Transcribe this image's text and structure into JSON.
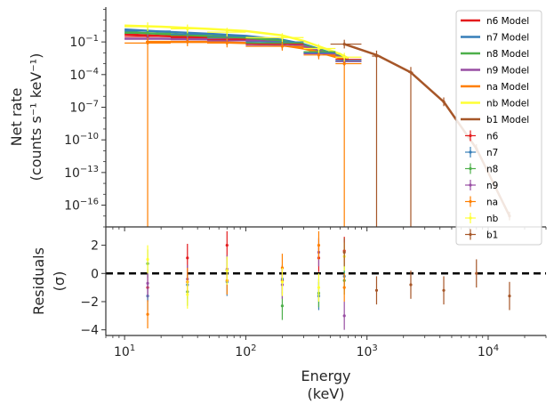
{
  "chart_data": {
    "type": "line",
    "x_scale": "log",
    "xlim": [
      7,
      30000
    ],
    "xlabel": "Energy",
    "xlabel_unit": "(keV)",
    "x_ticks": [
      {
        "value": 10,
        "base": "10",
        "exp": "1"
      },
      {
        "value": 100,
        "base": "10",
        "exp": "2"
      },
      {
        "value": 1000,
        "base": "10",
        "exp": "3"
      },
      {
        "value": 10000,
        "base": "10",
        "exp": "4"
      }
    ],
    "top_panel": {
      "y_scale": "log",
      "ylim_log10": [
        -18,
        2.2
      ],
      "ylabel": "Net rate",
      "ylabel_unit": "(counts s⁻¹ keV⁻¹)",
      "y_ticks": [
        {
          "log10": -1,
          "base": "10",
          "exp": "−1"
        },
        {
          "log10": -4,
          "base": "10",
          "exp": "−4"
        },
        {
          "log10": -7,
          "base": "10",
          "exp": "−7"
        },
        {
          "log10": -10,
          "base": "10",
          "exp": "−10"
        },
        {
          "log10": -13,
          "base": "10",
          "exp": "−13"
        },
        {
          "log10": -16,
          "base": "10",
          "exp": "−16"
        }
      ]
    },
    "bottom_panel": {
      "ylim": [
        -4.4,
        3.3
      ],
      "ylabel": "Residuals",
      "ylabel_unit": "(σ)",
      "y_ticks": [
        2,
        0,
        -2,
        -4
      ],
      "zero_line": true
    },
    "legend": {
      "placement": "top-right",
      "entries": [
        "n6 Model",
        "n7 Model",
        "n8 Model",
        "n9 Model",
        "na Model",
        "nb Model",
        "b1 Model",
        "n6",
        "n7",
        "n8",
        "n9",
        "na",
        "nb",
        "b1"
      ]
    },
    "series": [
      {
        "name": "n6",
        "color": "#e41a1c",
        "model_x": [
          10,
          20,
          50,
          100,
          200,
          300,
          400,
          600,
          700
        ],
        "model_log10": [
          -0.3,
          -0.45,
          -0.6,
          -0.75,
          -1.0,
          -1.35,
          -1.75,
          -2.35,
          -2.6
        ],
        "data": [
          {
            "x": 15.5,
            "log10": -0.5,
            "xerr": [
              10,
              24
            ],
            "res": -1.0
          },
          {
            "x": 33,
            "log10": -0.6,
            "xerr": [
              24,
              48
            ],
            "res": 1.1
          },
          {
            "x": 70,
            "log10": -0.8,
            "xerr": [
              48,
              100
            ],
            "res": 2.0
          },
          {
            "x": 200,
            "log10": -1.2,
            "xerr": [
              100,
              300
            ],
            "res": -0.5
          },
          {
            "x": 400,
            "log10": -2.0,
            "xerr": [
              300,
              550
            ],
            "res": 1.1
          },
          {
            "x": 650,
            "log10": -2.6,
            "xerr": [
              550,
              900
            ],
            "res": 1.6
          }
        ]
      },
      {
        "name": "n7",
        "color": "#377eb8",
        "model_x": [
          10,
          20,
          50,
          100,
          200,
          300,
          400,
          600,
          700
        ],
        "model_log10": [
          0.15,
          -0.05,
          -0.25,
          -0.45,
          -0.8,
          -1.2,
          -1.65,
          -2.3,
          -2.55
        ],
        "data": [
          {
            "x": 15.5,
            "log10": 0.0,
            "xerr": [
              10,
              24
            ],
            "res": -1.6
          },
          {
            "x": 33,
            "log10": -0.3,
            "xerr": [
              24,
              48
            ],
            "res": -0.8
          },
          {
            "x": 70,
            "log10": -0.5,
            "xerr": [
              48,
              100
            ],
            "res": -0.6
          },
          {
            "x": 200,
            "log10": -1.0,
            "xerr": [
              100,
              300
            ],
            "res": -0.4
          },
          {
            "x": 400,
            "log10": -2.0,
            "xerr": [
              300,
              550
            ],
            "res": -1.6
          },
          {
            "x": 650,
            "log10": -2.7,
            "xerr": [
              550,
              900
            ],
            "res": -0.2
          }
        ]
      },
      {
        "name": "n8",
        "color": "#4daf4a",
        "model_x": [
          10,
          20,
          50,
          100,
          200,
          300,
          400,
          600,
          700
        ],
        "model_log10": [
          -0.1,
          -0.25,
          -0.45,
          -0.6,
          -0.9,
          -1.3,
          -1.7,
          -2.35,
          -2.65
        ],
        "data": [
          {
            "x": 15.5,
            "log10": -0.2,
            "xerr": [
              10,
              24
            ],
            "res": 0.7
          },
          {
            "x": 33,
            "log10": -0.4,
            "xerr": [
              24,
              48
            ],
            "res": -1.3
          },
          {
            "x": 70,
            "log10": -0.6,
            "xerr": [
              48,
              100
            ],
            "res": 0.2
          },
          {
            "x": 200,
            "log10": -1.1,
            "xerr": [
              100,
              300
            ],
            "res": -2.3
          },
          {
            "x": 400,
            "log10": -1.9,
            "xerr": [
              300,
              550
            ],
            "res": -1.4
          },
          {
            "x": 650,
            "log10": -2.8,
            "xerr": [
              550,
              900
            ],
            "res": -0.5
          }
        ]
      },
      {
        "name": "n9",
        "color": "#984ea3",
        "model_x": [
          10,
          20,
          50,
          100,
          200,
          300,
          400,
          600,
          700
        ],
        "model_log10": [
          -0.7,
          -0.7,
          -0.75,
          -0.85,
          -1.05,
          -1.4,
          -1.8,
          -2.4,
          -2.7
        ],
        "data": [
          {
            "x": 15.5,
            "log10": -0.7,
            "xerr": [
              10,
              24
            ],
            "res": -0.7
          },
          {
            "x": 33,
            "log10": -0.8,
            "xerr": [
              24,
              48
            ],
            "res": -0.4
          },
          {
            "x": 70,
            "log10": -0.9,
            "xerr": [
              48,
              100
            ],
            "res": 0.3
          },
          {
            "x": 200,
            "log10": -1.3,
            "xerr": [
              100,
              300
            ],
            "res": -0.8
          },
          {
            "x": 400,
            "log10": -2.1,
            "xerr": [
              300,
              550
            ],
            "res": 1.5
          },
          {
            "x": 650,
            "log10": -2.8,
            "xerr": [
              550,
              900
            ],
            "res": -3.0
          }
        ]
      },
      {
        "name": "na",
        "color": "#ff7f00",
        "model_x": [
          15,
          20,
          50,
          100,
          200,
          300,
          400,
          600,
          700
        ],
        "model_log10": [
          -1.0,
          -1.0,
          -1.0,
          -1.1,
          -1.3,
          -1.6,
          -1.95,
          -2.5,
          -2.75
        ],
        "data": [
          {
            "x": 15.5,
            "log10": -1.1,
            "xerr": [
              10,
              24
            ],
            "res": -2.9,
            "low_log10": -18
          },
          {
            "x": 33,
            "log10": -1.0,
            "xerr": [
              24,
              48
            ],
            "res": -0.6
          },
          {
            "x": 70,
            "log10": -1.1,
            "xerr": [
              48,
              100
            ],
            "res": -0.5
          },
          {
            "x": 200,
            "log10": -1.4,
            "xerr": [
              100,
              300
            ],
            "res": 0.4
          },
          {
            "x": 400,
            "log10": -2.2,
            "xerr": [
              300,
              550
            ],
            "res": 2.0
          },
          {
            "x": 650,
            "log10": -3.0,
            "xerr": [
              550,
              900
            ],
            "res": -1.0,
            "low_log10": -18
          }
        ]
      },
      {
        "name": "nb",
        "color": "#ffff33",
        "model_x": [
          10,
          20,
          50,
          100,
          200,
          300,
          400,
          600,
          700
        ],
        "model_log10": [
          0.5,
          0.4,
          0.2,
          0.0,
          -0.4,
          -0.9,
          -1.4,
          -2.1,
          -2.5
        ],
        "data": [
          {
            "x": 15.5,
            "log10": 0.4,
            "xerr": [
              10,
              24
            ],
            "res": 1.0
          },
          {
            "x": 33,
            "log10": 0.2,
            "xerr": [
              24,
              48
            ],
            "res": -1.5
          },
          {
            "x": 70,
            "log10": -0.1,
            "xerr": [
              48,
              100
            ],
            "res": 0.2
          },
          {
            "x": 200,
            "log10": -0.6,
            "xerr": [
              100,
              300
            ],
            "res": -0.6
          },
          {
            "x": 400,
            "log10": -1.6,
            "xerr": [
              300,
              550
            ],
            "res": -1.0
          },
          {
            "x": 650,
            "log10": -2.4,
            "xerr": [
              550,
              900
            ],
            "res": 1.2
          }
        ]
      },
      {
        "name": "b1",
        "color": "#a65628",
        "model_x": [
          650,
          1200,
          2300,
          4300,
          8000,
          15000
        ],
        "model_log10": [
          -1.2,
          -2.2,
          -3.8,
          -6.5,
          -10.8,
          -17.0
        ],
        "data": [
          {
            "x": 650,
            "log10": -1.2,
            "xerr": [
              500,
              900
            ],
            "res": 1.5
          },
          {
            "x": 1200,
            "log10": -2.3,
            "xerr": [
              1100,
              1300
            ],
            "res": -1.2,
            "low_log10": -18
          },
          {
            "x": 2300,
            "log10": -3.8,
            "xerr": [
              2200,
              2400
            ],
            "res": -0.8,
            "low_log10": -18
          },
          {
            "x": 4300,
            "log10": -6.5,
            "xerr": [
              4200,
              4400
            ],
            "res": -1.2
          },
          {
            "x": 8000,
            "log10": -10.8,
            "xerr": [
              7900,
              8100
            ],
            "res": 0.0
          },
          {
            "x": 15000,
            "log10": -17.0,
            "xerr": [
              14900,
              15100
            ],
            "res": -1.6
          }
        ]
      }
    ]
  }
}
